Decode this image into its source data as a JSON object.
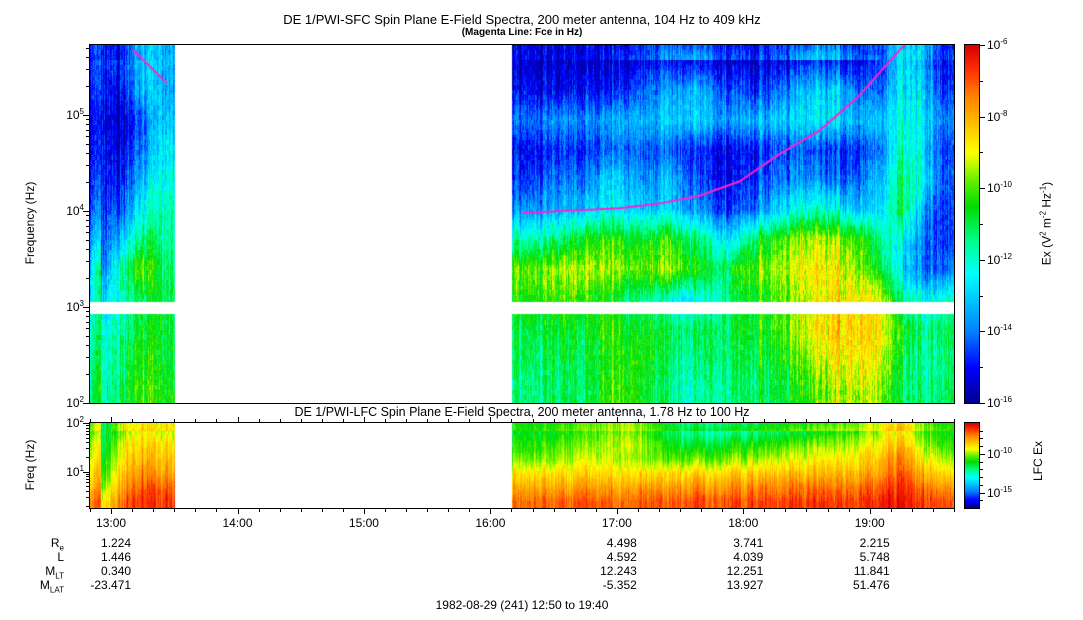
{
  "footer": {
    "caption": "1982-08-29 (241) 12:50 to 19:40"
  },
  "magenta_line_color": "#ff22cc",
  "colormap": {
    "stops": [
      [
        0.0,
        "#00008C"
      ],
      [
        0.1,
        "#0000FF"
      ],
      [
        0.2,
        "#0080FF"
      ],
      [
        0.3,
        "#00CFFF"
      ],
      [
        0.36,
        "#00FFFF"
      ],
      [
        0.45,
        "#00FF90"
      ],
      [
        0.55,
        "#00DC00"
      ],
      [
        0.62,
        "#60F000"
      ],
      [
        0.7,
        "#FFFF00"
      ],
      [
        0.78,
        "#FFC000"
      ],
      [
        0.86,
        "#FF8000"
      ],
      [
        0.93,
        "#FF3000"
      ],
      [
        1.0,
        "#D80000"
      ]
    ]
  },
  "time_axis": {
    "hour_labels": [
      "13:00",
      "14:00",
      "15:00",
      "16:00",
      "17:00",
      "18:00",
      "19:00"
    ],
    "first_tick_min": 10,
    "step_min": 60,
    "minor_step_min": 10,
    "total_min": 410
  },
  "ephemeris": {
    "rows": [
      {
        "base": "R",
        "sub": "e",
        "values": {
          "13:00": "1.224",
          "17:00": "4.498",
          "18:00": "3.741",
          "19:00": "2.215"
        }
      },
      {
        "base": "L",
        "sub": "",
        "values": {
          "13:00": "1.446",
          "17:00": "4.592",
          "18:00": "4.039",
          "19:00": "5.748"
        }
      },
      {
        "base": "M",
        "sub": "LT",
        "values": {
          "13:00": "0.340",
          "17:00": "12.243",
          "18:00": "12.251",
          "19:00": "11.841"
        }
      },
      {
        "base": "M",
        "sub": "LAT",
        "values": {
          "13:00": "-23.471",
          "17:00": "-5.352",
          "18:00": "13.927",
          "19:00": "51.476"
        }
      }
    ]
  },
  "chart_data": [
    {
      "type": "heatmap",
      "title": "DE 1/PWI-SFC  Spin Plane E-Field Spectra, 200 meter antenna, 104 Hz to 409 kHz",
      "subtitle": "(Magenta Line: Fce in Hz)",
      "ylabel": "Frequency (Hz)",
      "x_range_hours": [
        0,
        6.8333
      ],
      "x_start_label": "12:50",
      "x_end_label": "19:40",
      "log_f_range": [
        2.0,
        5.73
      ],
      "y_major_exponents": [
        2,
        3,
        4,
        5
      ],
      "value_range_exp": [
        -16,
        -6
      ],
      "time_bin_minutes": 10,
      "white_band_log_f": [
        2.92,
        3.05
      ],
      "colorbar": {
        "label_parts": [
          [
            "t",
            "Ex (V"
          ],
          [
            "s",
            "2"
          ],
          [
            "t",
            " m"
          ],
          [
            "s",
            "-2"
          ],
          [
            "t",
            " Hz"
          ],
          [
            "s",
            "-1"
          ],
          [
            "t",
            ")"
          ]
        ],
        "range_exp": [
          -16,
          -6
        ],
        "major_exponents": [
          -6,
          -8,
          -10,
          -12,
          -14,
          -16
        ],
        "minor_exponents": [
          -7,
          -9,
          -11,
          -13,
          -15
        ]
      },
      "fce_line_hours_logf": [
        [
          [
            0.34,
            5.68
          ],
          [
            0.61,
            5.33
          ]
        ],
        [
          [
            3.42,
            3.98
          ],
          [
            3.72,
            4.0
          ],
          [
            4.19,
            4.03
          ],
          [
            4.51,
            4.08
          ],
          [
            4.82,
            4.16
          ],
          [
            5.14,
            4.31
          ],
          [
            5.45,
            4.59
          ],
          [
            5.77,
            4.84
          ],
          [
            6.09,
            5.21
          ],
          [
            6.25,
            5.45
          ],
          [
            6.44,
            5.73
          ]
        ]
      ],
      "segments": [
        {
          "t_start_h": 0.0,
          "rows": [
            [
              -15.3,
              -14.5,
              -12.8,
              -13.2
            ],
            [
              -15.3,
              -15.0,
              -13.0,
              -13.3
            ],
            [
              -15.4,
              -15.4,
              -14.0,
              -13.0
            ],
            [
              -15.4,
              -15.2,
              -13.8,
              -12.6
            ],
            [
              -15.2,
              -14.8,
              -13.0,
              -12.2
            ],
            [
              -15.0,
              -14.2,
              -12.2,
              -11.8
            ],
            [
              -14.8,
              -13.0,
              -11.0,
              -11.6
            ],
            [
              -14.5,
              -11.5,
              -9.6,
              -11.2
            ],
            [
              -13.5,
              -11.8,
              -10.8,
              -11.0
            ],
            [
              -12.8,
              -11.5,
              -10.5,
              -10.8
            ],
            [
              -12.5,
              -11.2,
              -10.2,
              -10.8
            ],
            [
              -12.5,
              -10.8,
              -10.0,
              -10.5
            ]
          ]
        },
        {
          "t_start_h": 3.3333,
          "rows": [
            [
              -15.4,
              -15.4,
              -15.3,
              -15.4,
              -15.4,
              -15.3,
              -15.2,
              -15.0,
              -15.0,
              -15.2,
              -15.3,
              -15.3,
              -15.2,
              -15.0,
              -14.8,
              -15.0,
              -15.2,
              -14.6,
              -12.8,
              -13.4,
              -15.0
            ],
            [
              -15.0,
              -15.0,
              -15.0,
              -14.9,
              -15.0,
              -14.6,
              -14.2,
              -13.6,
              -13.2,
              -13.8,
              -14.4,
              -14.6,
              -14.2,
              -13.4,
              -13.0,
              -13.2,
              -14.0,
              -14.2,
              -12.6,
              -13.0,
              -14.6
            ],
            [
              -14.2,
              -13.8,
              -13.5,
              -13.8,
              -13.5,
              -13.2,
              -13.5,
              -13.0,
              -12.8,
              -13.2,
              -13.5,
              -13.2,
              -13.0,
              -12.8,
              -12.6,
              -12.8,
              -13.2,
              -13.0,
              -12.2,
              -12.6,
              -13.8
            ],
            [
              -15.2,
              -14.8,
              -14.5,
              -14.8,
              -14.2,
              -14.0,
              -14.5,
              -14.2,
              -14.6,
              -15.0,
              -15.0,
              -14.8,
              -14.5,
              -14.2,
              -14.5,
              -14.8,
              -14.5,
              -14.0,
              -11.8,
              -12.8,
              -14.5
            ],
            [
              -14.8,
              -14.2,
              -13.8,
              -14.0,
              -12.8,
              -13.2,
              -14.0,
              -13.2,
              -14.2,
              -14.8,
              -15.0,
              -14.6,
              -14.0,
              -13.6,
              -13.8,
              -14.2,
              -14.0,
              -13.2,
              -11.2,
              -12.4,
              -14.2
            ],
            [
              -13.8,
              -13.5,
              -13.2,
              -13.0,
              -12.5,
              -12.8,
              -13.2,
              -12.8,
              -13.5,
              -14.2,
              -14.5,
              -13.8,
              -13.0,
              -12.2,
              -12.0,
              -12.5,
              -13.0,
              -12.8,
              -11.0,
              -13.5,
              -14.5
            ],
            [
              -12.0,
              -11.5,
              -11.0,
              -10.5,
              -10.2,
              -10.5,
              -10.8,
              -10.2,
              -11.0,
              -12.0,
              -12.5,
              -11.0,
              -10.2,
              -9.6,
              -9.4,
              -9.6,
              -10.0,
              -11.5,
              -12.5,
              -14.0,
              -14.5
            ],
            [
              -10.0,
              -9.6,
              -9.3,
              -9.2,
              -9.4,
              -9.8,
              -10.0,
              -9.5,
              -10.2,
              -11.0,
              -10.5,
              -9.8,
              -9.4,
              -9.0,
              -8.8,
              -9.0,
              -9.5,
              -10.8,
              -12.8,
              -14.2,
              -14.0
            ],
            [
              -10.5,
              -10.2,
              -10.0,
              -10.2,
              -10.5,
              -11.2,
              -11.8,
              -12.2,
              -12.5,
              -12.0,
              -11.0,
              -10.5,
              -10.0,
              -9.5,
              -9.0,
              -8.8,
              -8.6,
              -9.0,
              -11.5,
              -12.5,
              -12.0
            ],
            [
              -11.0,
              -10.8,
              -10.5,
              -10.8,
              -10.2,
              -10.5,
              -10.8,
              -11.0,
              -11.2,
              -11.0,
              -10.8,
              -10.5,
              -10.2,
              -9.4,
              -8.8,
              -8.5,
              -8.3,
              -8.6,
              -10.5,
              -11.5,
              -11.0
            ],
            [
              -11.2,
              -11.0,
              -10.8,
              -11.0,
              -10.5,
              -10.2,
              -10.8,
              -11.2,
              -11.5,
              -11.2,
              -11.0,
              -10.8,
              -10.5,
              -10.0,
              -9.4,
              -8.8,
              -8.6,
              -9.0,
              -11.0,
              -11.8,
              -11.2
            ],
            [
              -11.5,
              -11.2,
              -11.0,
              -11.2,
              -10.2,
              -10.0,
              -11.0,
              -11.5,
              -11.8,
              -11.5,
              -11.2,
              -11.0,
              -10.8,
              -10.5,
              -10.0,
              -9.5,
              -9.2,
              -9.5,
              -11.2,
              -11.5,
              -11.0
            ]
          ]
        }
      ]
    },
    {
      "type": "heatmap",
      "title": "DE 1/PWI-LFC  Spin Plane E-Field Spectra, 200 meter antenna, 1.78 Hz to 100 Hz",
      "ylabel": "Freq (Hz)",
      "x_range_hours": [
        0,
        6.8333
      ],
      "log_f_range": [
        0.25,
        2.0
      ],
      "y_major_exponents": [
        1,
        2
      ],
      "value_range_exp": [
        -17,
        -6
      ],
      "time_bin_minutes": 10,
      "colorbar": {
        "label_parts": [
          [
            "t",
            "LFC Ex"
          ]
        ],
        "range_exp": [
          -17,
          -6
        ],
        "major_exponents": [
          -10,
          -15
        ],
        "minor_exponents": [
          -7,
          -8,
          -9,
          -11,
          -12,
          -13,
          -14,
          -16
        ]
      },
      "segments": [
        {
          "t_start_h": 0.0,
          "rows": [
            [
              -12.0,
              -10.0,
              -9.2,
              -9.5
            ],
            [
              -12.0,
              -9.2,
              -8.6,
              -8.8
            ],
            [
              -11.5,
              -8.8,
              -8.2,
              -8.4
            ],
            [
              -11.0,
              -8.4,
              -7.6,
              -8.0
            ],
            [
              -10.5,
              -7.8,
              -7.0,
              -7.2
            ],
            [
              -9.5,
              -7.2,
              -6.6,
              -6.8
            ]
          ]
        },
        {
          "t_start_h": 3.3333,
          "rows": [
            [
              -11.0,
              -11.2,
              -10.8,
              -10.5,
              -10.2,
              -10.0,
              -10.8,
              -11.8,
              -12.2,
              -12.4,
              -12.2,
              -12.0,
              -11.8,
              -11.6,
              -11.2,
              -10.8,
              -10.4,
              -9.8,
              -9.0,
              -10.5,
              -11.0
            ],
            [
              -10.8,
              -10.5,
              -10.2,
              -10.0,
              -9.8,
              -9.5,
              -10.2,
              -11.0,
              -11.4,
              -11.2,
              -11.0,
              -10.8,
              -10.6,
              -10.2,
              -10.0,
              -9.8,
              -9.5,
              -9.2,
              -8.2,
              -9.8,
              -10.5
            ],
            [
              -10.2,
              -10.0,
              -9.8,
              -9.4,
              -9.6,
              -9.8,
              -10.2,
              -10.4,
              -10.2,
              -10.2,
              -10.0,
              -9.8,
              -9.6,
              -9.4,
              -9.2,
              -9.0,
              -8.8,
              -8.5,
              -7.5,
              -9.0,
              -9.8
            ],
            [
              -9.0,
              -8.8,
              -8.8,
              -8.6,
              -8.8,
              -9.0,
              -9.0,
              -8.8,
              -8.8,
              -8.8,
              -8.6,
              -8.6,
              -8.5,
              -8.4,
              -8.4,
              -8.2,
              -8.2,
              -8.0,
              -7.0,
              -8.2,
              -8.8
            ],
            [
              -8.2,
              -8.0,
              -8.0,
              -7.8,
              -8.0,
              -8.2,
              -8.0,
              -8.0,
              -7.8,
              -7.8,
              -7.8,
              -7.6,
              -7.6,
              -7.5,
              -7.5,
              -7.4,
              -7.4,
              -7.2,
              -6.6,
              -7.4,
              -7.8
            ],
            [
              -7.4,
              -7.2,
              -7.2,
              -7.0,
              -7.2,
              -7.4,
              -7.2,
              -7.2,
              -7.0,
              -7.0,
              -7.0,
              -6.9,
              -6.9,
              -6.8,
              -6.8,
              -6.8,
              -6.8,
              -6.6,
              -6.3,
              -6.8,
              -7.0
            ]
          ]
        }
      ]
    }
  ]
}
